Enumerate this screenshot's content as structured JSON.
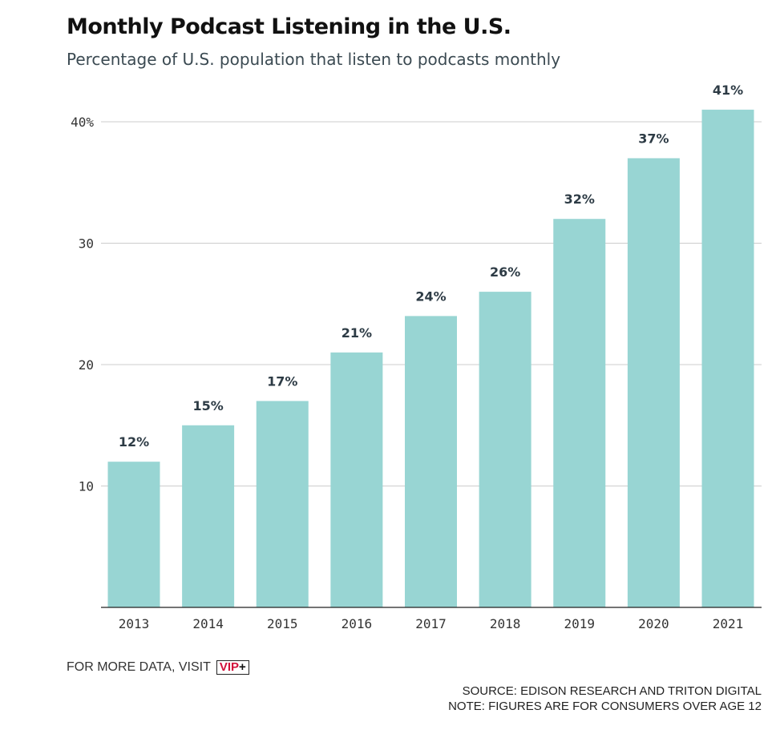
{
  "header": {
    "title": "Monthly Podcast Listening in the U.S.",
    "subtitle": "Percentage of U.S. population that listen to podcasts monthly"
  },
  "chart_data": {
    "type": "bar",
    "categories": [
      "2013",
      "2014",
      "2015",
      "2016",
      "2017",
      "2018",
      "2019",
      "2020",
      "2021"
    ],
    "values": [
      12,
      15,
      17,
      21,
      24,
      26,
      32,
      37,
      41
    ],
    "data_labels": [
      "12%",
      "15%",
      "17%",
      "21%",
      "24%",
      "26%",
      "32%",
      "37%",
      "41%"
    ],
    "y_ticks": [
      10,
      20,
      30,
      40
    ],
    "y_tick_labels": [
      "10",
      "20",
      "30",
      "40%"
    ],
    "ylim": [
      0,
      40
    ],
    "grid": true,
    "legend": "none",
    "colors": {
      "bar": "#98d5d3",
      "gridline": "#cccccc",
      "baseline": "#222222",
      "label": "#2d3b45"
    }
  },
  "footer": {
    "visit_text": "FOR MORE DATA, VISIT",
    "badge_vip": "VIP",
    "badge_plus": "+",
    "source": "SOURCE: EDISON RESEARCH AND TRITON DIGITAL",
    "note": "NOTE: FIGURES ARE FOR CONSUMERS OVER AGE 12"
  }
}
